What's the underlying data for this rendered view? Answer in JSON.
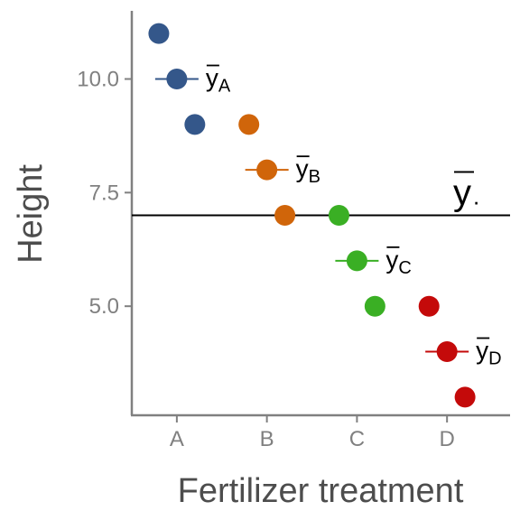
{
  "chart_data": {
    "type": "scatter",
    "title": "",
    "xlabel": "Fertilizer treatment",
    "ylabel": "Height",
    "xlim": [
      0.5,
      4.7
    ],
    "ylim": [
      2.6,
      11.5
    ],
    "y_ticks": [
      {
        "value": 5.0,
        "label": "5.0"
      },
      {
        "value": 7.5,
        "label": "7.5"
      },
      {
        "value": 10.0,
        "label": "10.0"
      }
    ],
    "grid": false,
    "legend": "none",
    "categories": [
      "A",
      "B",
      "C",
      "D"
    ],
    "grand_mean": {
      "value": 7.0,
      "label": "y",
      "subscript": "."
    },
    "series": [
      {
        "category": "A",
        "color": "#34578a",
        "points": [
          {
            "x": 0.8,
            "y": 11.0
          },
          {
            "x": 1.2,
            "y": 9.0
          }
        ],
        "mean": {
          "x": 1.0,
          "y": 10.0,
          "label": "y",
          "subscript": "A"
        }
      },
      {
        "category": "B",
        "color": "#d0650a",
        "points": [
          {
            "x": 1.8,
            "y": 9.0
          },
          {
            "x": 2.2,
            "y": 7.0
          }
        ],
        "mean": {
          "x": 2.0,
          "y": 8.0,
          "label": "y",
          "subscript": "B"
        }
      },
      {
        "category": "C",
        "color": "#3aaf24",
        "points": [
          {
            "x": 2.8,
            "y": 7.0
          },
          {
            "x": 3.2,
            "y": 5.0
          }
        ],
        "mean": {
          "x": 3.0,
          "y": 6.0,
          "label": "y",
          "subscript": "C"
        }
      },
      {
        "category": "D",
        "color": "#c40a0a",
        "points": [
          {
            "x": 3.8,
            "y": 5.0
          },
          {
            "x": 4.2,
            "y": 3.0
          }
        ],
        "mean": {
          "x": 4.0,
          "y": 4.0,
          "label": "y",
          "subscript": "D"
        }
      }
    ]
  }
}
